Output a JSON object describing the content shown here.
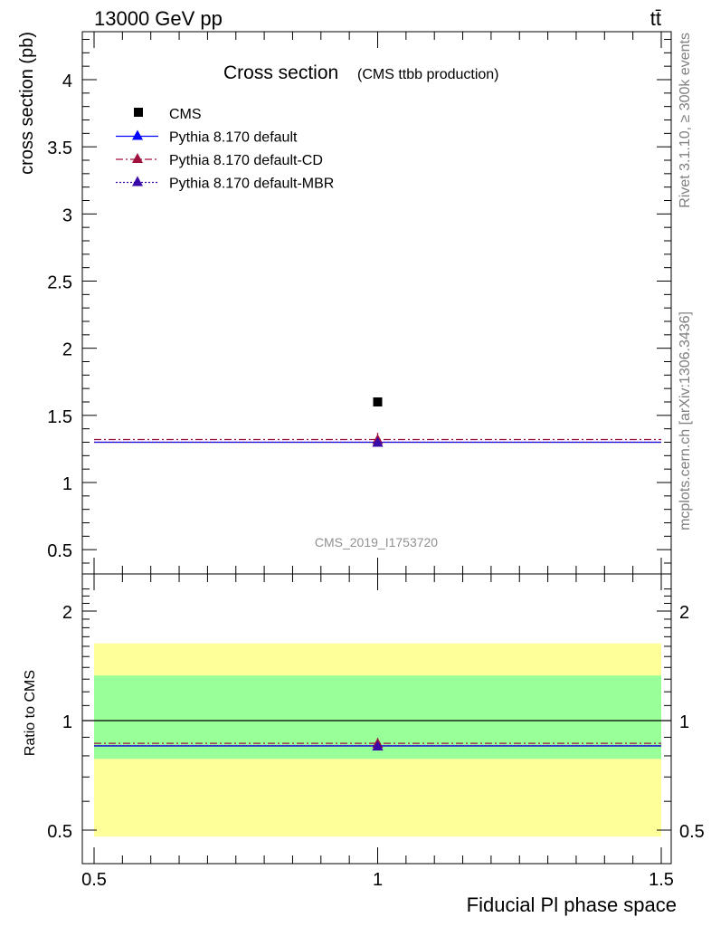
{
  "header": {
    "energy_label": "13000 GeV pp",
    "process_label": "tt̄",
    "side_label_top": "Rivet 3.1.10, ≥ 300k events",
    "side_label_bottom": "mcplots.cern.ch [arXiv:1306.3436]",
    "analysis_id": "CMS_2019_I1753720"
  },
  "chart_data": [
    {
      "type": "scatter",
      "panel": "main",
      "title": "Cross section",
      "subtitle": "(CMS ttbb production)",
      "xlabel": "Fiducial Pl phase space",
      "ylabel": "cross section (pb)",
      "xlim": [
        0.5,
        1.5
      ],
      "ylim": [
        0.35,
        4.35
      ],
      "y_ticks": [
        "0.5",
        "1",
        "1.5",
        "2",
        "2.5",
        "3",
        "3.5",
        "4"
      ],
      "x_ticks": [
        "0.5",
        "1",
        "1.5"
      ],
      "legend_position": "top-left",
      "series": [
        {
          "name": "CMS",
          "color": "#000000",
          "marker": "square",
          "x": [
            1.0
          ],
          "y": [
            1.6
          ],
          "xerr": [
            0.5
          ]
        },
        {
          "name": "Pythia 8.170 default",
          "color": "#0000ff",
          "marker": "triangle",
          "line": "solid",
          "x": [
            1.0
          ],
          "y": [
            1.3
          ],
          "yerr": [
            0.02
          ],
          "xrange": [
            0.5,
            1.5
          ]
        },
        {
          "name": "Pythia 8.170 default-CD",
          "color": "#a0103c",
          "marker": "triangle",
          "line": "dashdot",
          "x": [
            1.0
          ],
          "y": [
            1.32
          ],
          "yerr": [
            0.05
          ],
          "xrange": [
            0.5,
            1.5
          ]
        },
        {
          "name": "Pythia 8.170 default-MBR",
          "color": "#3a0aa8",
          "marker": "triangle",
          "line": "dotted",
          "x": [
            1.0
          ],
          "y": [
            1.3
          ],
          "yerr": [
            0.02
          ],
          "xrange": [
            0.5,
            1.5
          ]
        }
      ]
    },
    {
      "type": "scatter",
      "panel": "ratio",
      "ylabel": "Ratio to CMS",
      "xlabel": "Fiducial Pl phase space",
      "xlim": [
        0.5,
        1.5
      ],
      "ylim": [
        0.42,
        2.35
      ],
      "y_ticks": [
        "0.5",
        "1",
        "2"
      ],
      "x_ticks": [
        "0.5",
        "1",
        "1.5"
      ],
      "log_y": true,
      "bands": [
        {
          "label": "yellow",
          "color": "#ffff99",
          "ymin": 0.48,
          "ymax": 1.63,
          "xmin": 0.5,
          "xmax": 1.5
        },
        {
          "label": "green",
          "color": "#99ff99",
          "ymin": 0.785,
          "ymax": 1.33,
          "xmin": 0.5,
          "xmax": 1.5
        }
      ],
      "series": [
        {
          "name": "Pythia 8.170 default",
          "color": "#0000ff",
          "line": "solid",
          "x": [
            1.0
          ],
          "y": [
            0.852
          ],
          "yerr": [
            0.01
          ]
        },
        {
          "name": "Pythia 8.170 default-CD",
          "color": "#a0103c",
          "line": "dashdot",
          "x": [
            1.0
          ],
          "y": [
            0.866
          ],
          "yerr": [
            0.03
          ]
        },
        {
          "name": "Pythia 8.170 default-MBR",
          "color": "#3a0aa8",
          "line": "dotted",
          "x": [
            1.0
          ],
          "y": [
            0.852
          ],
          "yerr": [
            0.01
          ]
        }
      ]
    }
  ]
}
